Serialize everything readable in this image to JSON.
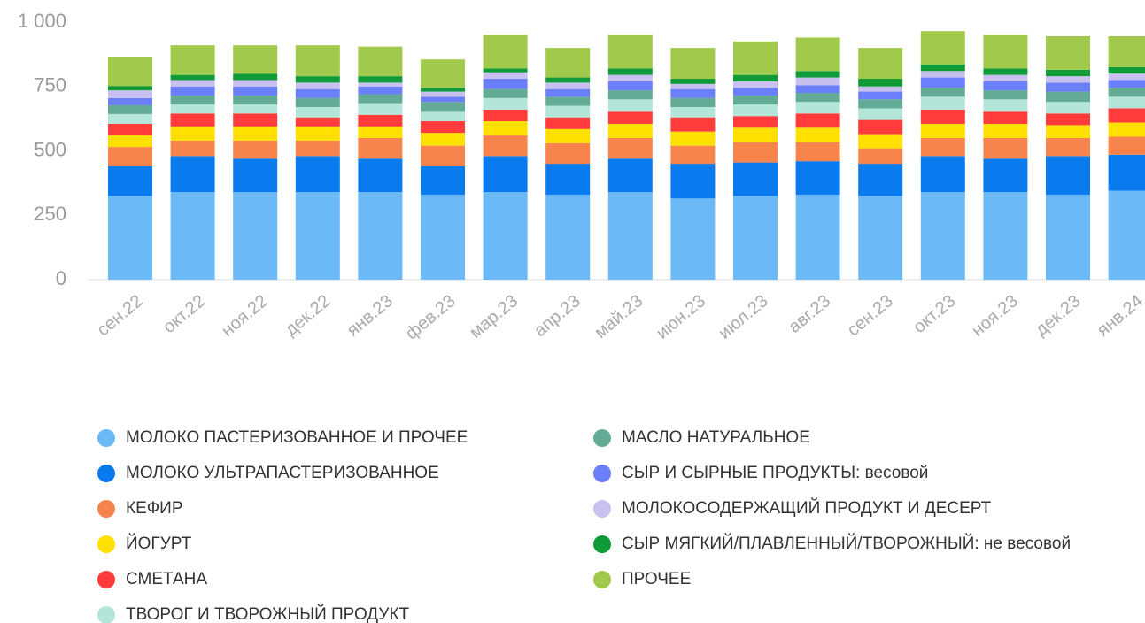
{
  "chart_data": {
    "type": "stacked_bar",
    "categories": [
      "сен.22",
      "окт.22",
      "ноя.22",
      "дек.22",
      "янв.23",
      "фев.23",
      "мар.23",
      "апр.23",
      "май.23",
      "июн.23",
      "июл.23",
      "авг.23",
      "сен.23",
      "окт.23",
      "ноя.23",
      "дек.23",
      "янв.24"
    ],
    "series": [
      {
        "name": "МОЛОКО ПАСТЕРИЗОВАННОЕ И ПРОЧЕЕ",
        "color": "#6bb9f7",
        "values": [
          325,
          340,
          340,
          340,
          340,
          330,
          340,
          330,
          340,
          315,
          325,
          330,
          325,
          340,
          340,
          330,
          345
        ]
      },
      {
        "name": "МОЛОКО УЛЬТРАПАСТЕРИЗОВАННОЕ",
        "color": "#0a7bef",
        "values": [
          115,
          140,
          130,
          140,
          130,
          110,
          140,
          120,
          130,
          135,
          130,
          130,
          125,
          140,
          130,
          150,
          140
        ]
      },
      {
        "name": "КЕФИР",
        "color": "#f6844c",
        "values": [
          75,
          60,
          70,
          60,
          80,
          80,
          80,
          80,
          80,
          70,
          80,
          75,
          60,
          70,
          80,
          70,
          70
        ]
      },
      {
        "name": "ЙОГУРТ",
        "color": "#ffe000",
        "values": [
          45,
          55,
          55,
          55,
          45,
          50,
          55,
          55,
          55,
          55,
          55,
          55,
          55,
          55,
          55,
          50,
          55
        ]
      },
      {
        "name": "СМЕТАНА",
        "color": "#ff3b3b",
        "values": [
          45,
          50,
          50,
          35,
          45,
          45,
          45,
          45,
          50,
          55,
          45,
          55,
          55,
          55,
          50,
          45,
          55
        ]
      },
      {
        "name": "ТВОРОГ И ТВОРОЖНЫЙ ПРОДУКТ",
        "color": "#b3e6d8",
        "values": [
          38,
          35,
          35,
          40,
          45,
          40,
          45,
          45,
          45,
          40,
          45,
          45,
          45,
          50,
          45,
          45,
          45
        ]
      },
      {
        "name": "МАСЛО НАТУРАЛЬНОЕ",
        "color": "#64ab95",
        "values": [
          34,
          35,
          35,
          35,
          35,
          35,
          35,
          35,
          35,
          35,
          35,
          35,
          35,
          35,
          35,
          40,
          35
        ]
      },
      {
        "name": "СЫР И СЫРНЫЕ ПРОДУКТЫ: весовой",
        "color": "#6b7ffa",
        "values": [
          28,
          35,
          35,
          35,
          30,
          20,
          40,
          30,
          35,
          35,
          30,
          30,
          30,
          40,
          35,
          35,
          30
        ]
      },
      {
        "name": "МОЛОКОСОДЕРЖАЩИЙ ПРОДУКТ И ДЕСЕРТ",
        "color": "#c8c1ef",
        "values": [
          30,
          25,
          25,
          25,
          15,
          20,
          25,
          25,
          25,
          20,
          25,
          30,
          20,
          25,
          25,
          25,
          25
        ]
      },
      {
        "name": "СЫР МЯГКИЙ/ПЛАВЛЕННЫЙ/ТВОРОЖНЫЙ: не весовой",
        "color": "#109b39",
        "values": [
          17,
          20,
          25,
          25,
          25,
          15,
          15,
          20,
          25,
          20,
          25,
          25,
          30,
          25,
          25,
          25,
          25
        ]
      },
      {
        "name": "ПРОЧЕЕ",
        "color": "#a1c94b",
        "values": [
          114,
          115,
          110,
          120,
          115,
          110,
          130,
          115,
          130,
          120,
          130,
          130,
          120,
          130,
          130,
          130,
          120
        ]
      }
    ],
    "ylim": [
      0,
      1000
    ],
    "yticks": [
      0,
      250,
      500,
      750,
      {
        "value": 1000,
        "label": "1 000"
      }
    ],
    "grid": false
  }
}
